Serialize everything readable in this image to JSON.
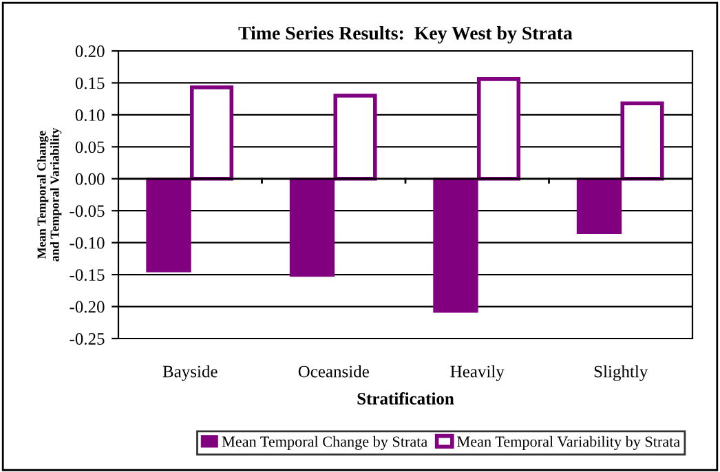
{
  "chart_data": {
    "type": "bar",
    "title": "Time Series Results:  Key West by Strata",
    "xlabel": "Stratification",
    "ylabel": "Mean Temporal Change\nand Temporal Variability",
    "categories": [
      "Bayside",
      "Oceanside",
      "Heavily",
      "Slightly"
    ],
    "series": [
      {
        "name": "Mean Temporal Change by Strata",
        "color": "#800080",
        "values": [
          -0.145,
          -0.152,
          -0.208,
          -0.085
        ]
      },
      {
        "name": "Mean Temporal Variability by Strata",
        "color": "#800080",
        "values": [
          0.143,
          0.13,
          0.156,
          0.118
        ]
      }
    ],
    "ylim": [
      -0.25,
      0.2
    ],
    "yticks": [
      {
        "value": -0.25,
        "label": "-0.25"
      },
      {
        "value": -0.2,
        "label": "-0.20"
      },
      {
        "value": -0.15,
        "label": "-0.15"
      },
      {
        "value": -0.1,
        "label": "-0.10"
      },
      {
        "value": -0.05,
        "label": "-0.05"
      },
      {
        "value": 0,
        "label": "0.00"
      },
      {
        "value": 0.05,
        "label": "0.05"
      },
      {
        "value": 0.1,
        "label": "0.10"
      },
      {
        "value": 0.15,
        "label": "0.15"
      },
      {
        "value": 0.2,
        "label": "0.20"
      }
    ],
    "grid": "y",
    "legend": "bottom"
  }
}
